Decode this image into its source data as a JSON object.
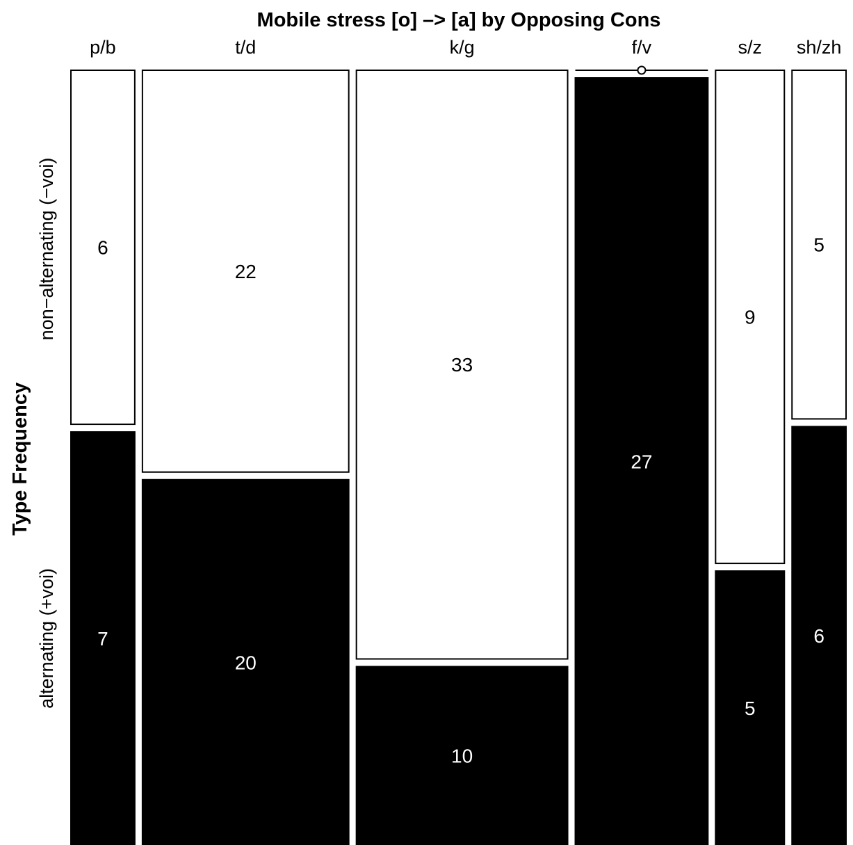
{
  "chart_data": {
    "type": "mosaic",
    "title": "Mobile stress [o] –> [a] by Opposing Cons",
    "ylabel": "Type Frequency",
    "xlabel": "",
    "categories": [
      "p/b",
      "t/d",
      "k/g",
      "f/v",
      "s/z",
      "sh/zh"
    ],
    "series": [
      {
        "name": "non−alternating (−voi)",
        "values": [
          6,
          22,
          33,
          0,
          9,
          5
        ],
        "color": "#ffffff"
      },
      {
        "name": "alternating (+voi)",
        "values": [
          7,
          20,
          10,
          27,
          5,
          6
        ],
        "color": "#000000"
      }
    ],
    "totals": [
      13,
      42,
      43,
      27,
      14,
      11
    ],
    "grid": false,
    "legend": "none"
  }
}
